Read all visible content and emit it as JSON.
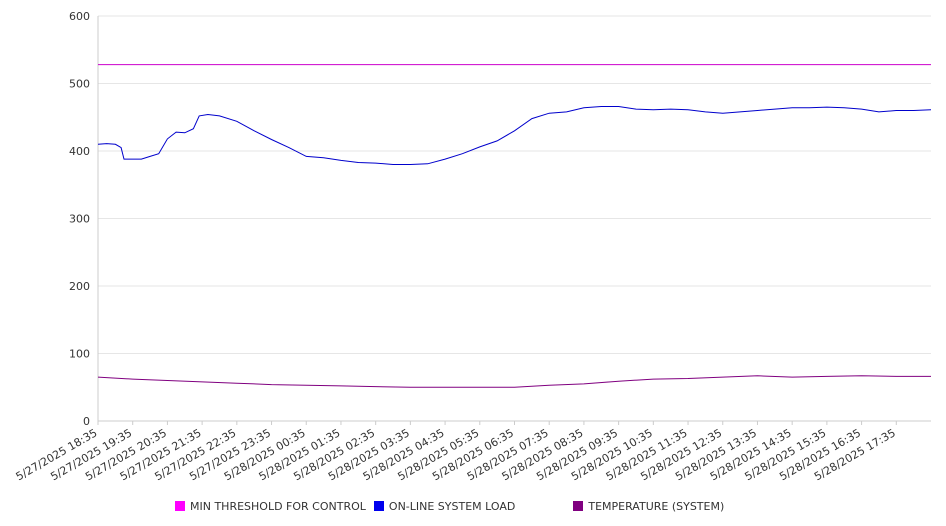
{
  "chart_data": {
    "type": "line",
    "ylim": [
      0,
      600
    ],
    "yticks": [
      "0",
      "100",
      "200",
      "300",
      "400",
      "500",
      "600"
    ],
    "xticks": [
      "5/27/2025 18:35",
      "5/27/2025 19:35",
      "5/27/2025 20:35",
      "5/27/2025 21:35",
      "5/27/2025 22:35",
      "5/27/2025 23:35",
      "5/28/2025 00:35",
      "5/28/2025 01:35",
      "5/28/2025 02:35",
      "5/28/2025 03:35",
      "5/28/2025 04:35",
      "5/28/2025 05:35",
      "5/28/2025 06:35",
      "5/28/2025 07:35",
      "5/28/2025 08:35",
      "5/28/2025 09:35",
      "5/28/2025 10:35",
      "5/28/2025 11:35",
      "5/28/2025 12:35",
      "5/28/2025 13:35",
      "5/28/2025 14:35",
      "5/28/2025 15:35",
      "5/28/2025 16:35",
      "5/28/2025 17:35"
    ],
    "grid": "horizontal",
    "legend_position": "bottom",
    "series": [
      {
        "name": "MIN THRESHOLD FOR CONTROL",
        "color": "#cc00cc",
        "points": [
          [
            "5/27/2025 18:35",
            528
          ],
          [
            "5/28/2025 18:35",
            528
          ]
        ]
      },
      {
        "name": "ON-LINE SYSTEM LOAD",
        "color": "#0000cc",
        "points": [
          [
            "5/27/2025 18:35",
            410
          ],
          [
            "5/27/2025 18:50",
            411
          ],
          [
            "5/27/2025 19:05",
            410
          ],
          [
            "5/27/2025 19:15",
            405
          ],
          [
            "5/27/2025 19:20",
            388
          ],
          [
            "5/27/2025 19:35",
            388
          ],
          [
            "5/27/2025 19:50",
            388
          ],
          [
            "5/27/2025 20:05",
            392
          ],
          [
            "5/27/2025 20:20",
            396
          ],
          [
            "5/27/2025 20:35",
            418
          ],
          [
            "5/27/2025 20:50",
            428
          ],
          [
            "5/27/2025 21:05",
            427
          ],
          [
            "5/27/2025 21:20",
            433
          ],
          [
            "5/27/2025 21:30",
            452
          ],
          [
            "5/27/2025 21:45",
            454
          ],
          [
            "5/27/2025 22:05",
            452
          ],
          [
            "5/27/2025 22:35",
            444
          ],
          [
            "5/27/2025 23:05",
            430
          ],
          [
            "5/27/2025 23:35",
            417
          ],
          [
            "5/28/2025 00:05",
            405
          ],
          [
            "5/28/2025 00:35",
            392
          ],
          [
            "5/28/2025 01:05",
            390
          ],
          [
            "5/28/2025 01:35",
            386
          ],
          [
            "5/28/2025 02:05",
            383
          ],
          [
            "5/28/2025 02:35",
            382
          ],
          [
            "5/28/2025 03:05",
            380
          ],
          [
            "5/28/2025 03:35",
            380
          ],
          [
            "5/28/2025 04:05",
            381
          ],
          [
            "5/28/2025 04:35",
            388
          ],
          [
            "5/28/2025 05:05",
            396
          ],
          [
            "5/28/2025 05:35",
            406
          ],
          [
            "5/28/2025 06:05",
            415
          ],
          [
            "5/28/2025 06:35",
            430
          ],
          [
            "5/28/2025 07:05",
            448
          ],
          [
            "5/28/2025 07:35",
            456
          ],
          [
            "5/28/2025 08:05",
            458
          ],
          [
            "5/28/2025 08:35",
            464
          ],
          [
            "5/28/2025 09:05",
            466
          ],
          [
            "5/28/2025 09:35",
            466
          ],
          [
            "5/28/2025 10:05",
            462
          ],
          [
            "5/28/2025 10:35",
            461
          ],
          [
            "5/28/2025 11:05",
            462
          ],
          [
            "5/28/2025 11:35",
            461
          ],
          [
            "5/28/2025 12:05",
            458
          ],
          [
            "5/28/2025 12:35",
            456
          ],
          [
            "5/28/2025 13:05",
            458
          ],
          [
            "5/28/2025 13:35",
            460
          ],
          [
            "5/28/2025 14:05",
            462
          ],
          [
            "5/28/2025 14:35",
            464
          ],
          [
            "5/28/2025 15:05",
            464
          ],
          [
            "5/28/2025 15:35",
            465
          ],
          [
            "5/28/2025 16:05",
            464
          ],
          [
            "5/28/2025 16:35",
            462
          ],
          [
            "5/28/2025 17:05",
            458
          ],
          [
            "5/28/2025 17:35",
            460
          ],
          [
            "5/28/2025 18:05",
            460
          ],
          [
            "5/28/2025 18:35",
            461
          ]
        ]
      },
      {
        "name": "TEMPERATURE (SYSTEM)",
        "color": "#800080",
        "points": [
          [
            "5/27/2025 18:35",
            65
          ],
          [
            "5/27/2025 19:35",
            62
          ],
          [
            "5/27/2025 20:35",
            60
          ],
          [
            "5/27/2025 21:35",
            58
          ],
          [
            "5/27/2025 22:35",
            56
          ],
          [
            "5/27/2025 23:35",
            54
          ],
          [
            "5/28/2025 00:35",
            53
          ],
          [
            "5/28/2025 01:35",
            52
          ],
          [
            "5/28/2025 02:35",
            51
          ],
          [
            "5/28/2025 03:35",
            50
          ],
          [
            "5/28/2025 04:35",
            50
          ],
          [
            "5/28/2025 05:35",
            50
          ],
          [
            "5/28/2025 06:35",
            50
          ],
          [
            "5/28/2025 07:35",
            53
          ],
          [
            "5/28/2025 08:35",
            55
          ],
          [
            "5/28/2025 09:35",
            59
          ],
          [
            "5/28/2025 10:35",
            62
          ],
          [
            "5/28/2025 11:35",
            63
          ],
          [
            "5/28/2025 12:35",
            65
          ],
          [
            "5/28/2025 13:35",
            67
          ],
          [
            "5/28/2025 14:35",
            65
          ],
          [
            "5/28/2025 15:35",
            66
          ],
          [
            "5/28/2025 16:35",
            67
          ],
          [
            "5/28/2025 17:35",
            66
          ],
          [
            "5/28/2025 18:35",
            66
          ]
        ]
      }
    ]
  }
}
